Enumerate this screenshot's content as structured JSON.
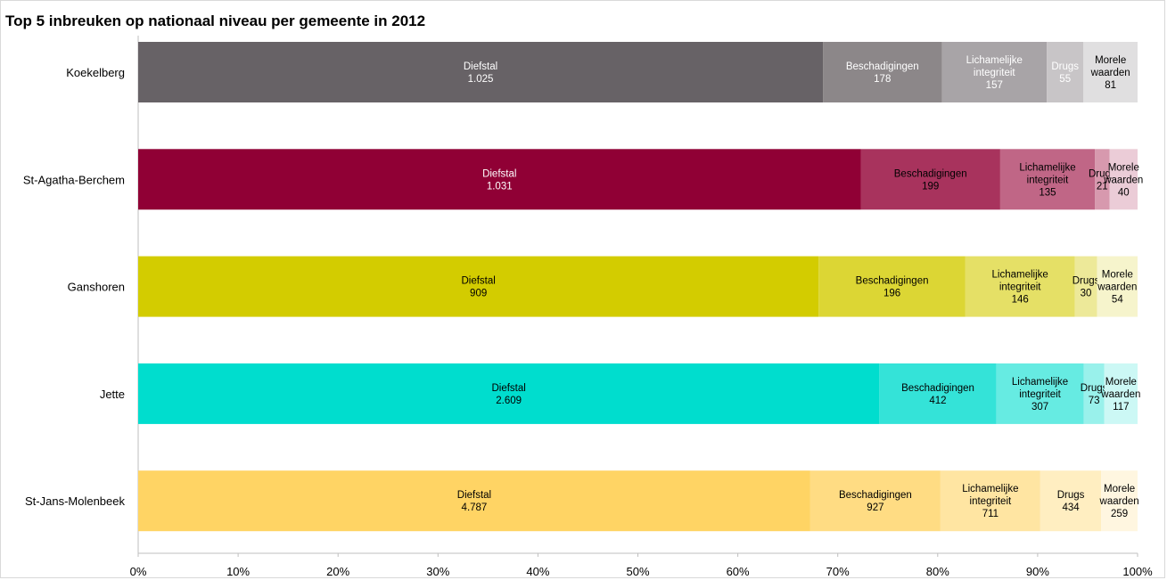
{
  "chart_data": {
    "type": "bar",
    "orientation": "horizontal",
    "stacked": "100%",
    "title": "Top 5 inbreuken op nationaal niveau per gemeente in 2012",
    "categories": [
      "Koekelberg",
      "St-Agatha-Berchem",
      "Ganshoren",
      "Jette",
      "St-Jans-Molenbeek"
    ],
    "series": [
      {
        "name": "Diefstal",
        "values": [
          1025,
          1031,
          909,
          2609,
          4787
        ],
        "value_labels": [
          "1.025",
          "1.031",
          "909",
          "2.609",
          "4.787"
        ],
        "label_lines": [
          "Diefstal"
        ]
      },
      {
        "name": "Beschadigingen",
        "values": [
          178,
          199,
          196,
          412,
          927
        ],
        "value_labels": [
          "178",
          "199",
          "196",
          "412",
          "927"
        ],
        "label_lines": [
          "Beschadigingen"
        ]
      },
      {
        "name": "Lichamelijke integriteit",
        "values": [
          157,
          135,
          146,
          307,
          711
        ],
        "value_labels": [
          "157",
          "135",
          "146",
          "307",
          "711"
        ],
        "label_lines": [
          "Lichamelijke",
          "integriteit"
        ]
      },
      {
        "name": "Drugs",
        "values": [
          55,
          21,
          30,
          73,
          434
        ],
        "value_labels": [
          "55",
          "21",
          "30",
          "73",
          "434"
        ],
        "label_lines": [
          "Drugs"
        ]
      },
      {
        "name": "Morele waarden",
        "values": [
          81,
          40,
          54,
          117,
          259
        ],
        "value_labels": [
          "81",
          "40",
          "54",
          "117",
          "259"
        ],
        "label_lines": [
          "Morele",
          "waarden"
        ]
      }
    ],
    "x_ticks": [
      "0%",
      "10%",
      "20%",
      "30%",
      "40%",
      "50%",
      "60%",
      "70%",
      "80%",
      "90%",
      "100%"
    ],
    "xlim": [
      0,
      100
    ],
    "grid": false,
    "legend": "none",
    "colors": [
      [
        "#676266",
        "#8c8789",
        "#a8a4a7",
        "#c8c5c7",
        "#e0dfe0"
      ],
      [
        "#900035",
        "#a8335d",
        "#c06686",
        "#d799ae",
        "#ebccd7"
      ],
      [
        "#d3cc00",
        "#dcd634",
        "#e5e066",
        "#ede999",
        "#f6f4cc"
      ],
      [
        "#00ddce",
        "#34e3d8",
        "#66ebe2",
        "#99f1eb",
        "#ccf8f5"
      ],
      [
        "#ffd464",
        "#ffdc83",
        "#ffe5a2",
        "#ffeec1",
        "#fff6e0"
      ]
    ],
    "label_colors": [
      [
        "#ffffff",
        "#ffffff",
        "#ffffff",
        "#ffffff",
        "#000000"
      ],
      [
        "#ffffff",
        "#000000",
        "#000000",
        "#000000",
        "#000000"
      ],
      [
        "#000000",
        "#000000",
        "#000000",
        "#000000",
        "#000000"
      ],
      [
        "#000000",
        "#000000",
        "#000000",
        "#000000",
        "#000000"
      ],
      [
        "#000000",
        "#000000",
        "#000000",
        "#000000",
        "#000000"
      ]
    ]
  }
}
